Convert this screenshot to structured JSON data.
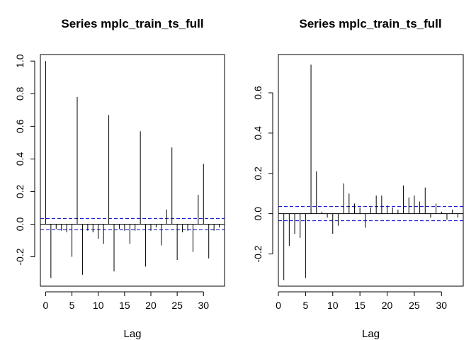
{
  "chart_data": [
    {
      "type": "bar",
      "title": "Series  mplc_train_ts_full",
      "xlabel": "Lag",
      "ylabel": "",
      "xlim": [
        -1,
        34
      ],
      "ylim": [
        -0.38,
        1.04
      ],
      "xticks": [
        0,
        5,
        10,
        15,
        20,
        25,
        30
      ],
      "yticks": [
        -0.2,
        0.0,
        0.2,
        0.4,
        0.6,
        0.8,
        1.0
      ],
      "ytick_labels": [
        "-0.2",
        "0.0",
        "0.2",
        "0.4",
        "0.6",
        "0.8",
        "1.0"
      ],
      "ci": 0.035,
      "ci_color": "#0000cc",
      "lags": [
        0,
        1,
        2,
        3,
        4,
        5,
        6,
        7,
        8,
        9,
        10,
        11,
        12,
        13,
        14,
        15,
        16,
        17,
        18,
        19,
        20,
        21,
        22,
        23,
        24,
        25,
        26,
        27,
        28,
        29,
        30,
        31,
        32,
        33
      ],
      "values": [
        1.0,
        -0.33,
        -0.03,
        -0.04,
        -0.05,
        -0.2,
        0.78,
        -0.31,
        -0.04,
        -0.05,
        -0.09,
        -0.12,
        0.67,
        -0.29,
        -0.03,
        -0.04,
        -0.12,
        -0.04,
        0.57,
        -0.26,
        -0.04,
        -0.02,
        -0.13,
        0.09,
        0.47,
        -0.22,
        -0.05,
        -0.04,
        -0.17,
        0.18,
        0.37,
        -0.21,
        -0.04,
        -0.02
      ]
    },
    {
      "type": "bar",
      "title": "Series  mplc_train_ts_full",
      "xlabel": "Lag",
      "ylabel": "",
      "xlim": [
        0,
        34
      ],
      "ylim": [
        -0.36,
        0.79
      ],
      "xticks": [
        0,
        5,
        10,
        15,
        20,
        25,
        30
      ],
      "yticks": [
        -0.2,
        0.0,
        0.2,
        0.4,
        0.6
      ],
      "ytick_labels": [
        "-0.2",
        "0.0",
        "0.2",
        "0.4",
        "0.6"
      ],
      "ci": 0.035,
      "ci_color": "#0000cc",
      "lags": [
        1,
        2,
        3,
        4,
        5,
        6,
        7,
        8,
        9,
        10,
        11,
        12,
        13,
        14,
        15,
        16,
        17,
        18,
        19,
        20,
        21,
        22,
        23,
        24,
        25,
        26,
        27,
        28,
        29,
        30,
        31,
        32,
        33
      ],
      "values": [
        -0.33,
        -0.16,
        -0.1,
        -0.12,
        -0.32,
        0.74,
        0.21,
        0.01,
        -0.02,
        -0.1,
        -0.06,
        0.15,
        0.1,
        0.05,
        0.03,
        -0.07,
        0.03,
        0.09,
        0.09,
        0.04,
        0.03,
        0.02,
        0.14,
        0.08,
        0.09,
        0.06,
        0.13,
        -0.02,
        0.05,
        0.01,
        -0.03,
        0.02,
        -0.02
      ]
    }
  ]
}
